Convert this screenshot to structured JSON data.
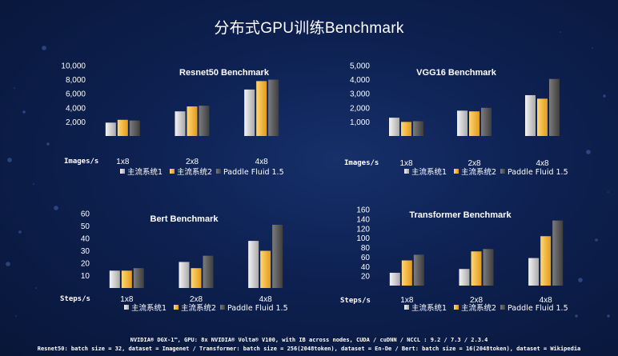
{
  "title": "分布式GPU训练Benchmark",
  "colors": {
    "series": [
      [
        "#f4f4f4",
        "#a9a9a9"
      ],
      [
        "#ffd773",
        "#e29a1a"
      ],
      [
        "#7c7c7c",
        "#3e3e3e"
      ]
    ]
  },
  "chart_data": [
    {
      "type": "bar",
      "title": "Resnet50 Benchmark",
      "xlabel": "Images/s",
      "categories": [
        "1x8",
        "2x8",
        "4x8"
      ],
      "y_ticks": [
        "2,000",
        "4,000",
        "6,000",
        "8,000",
        "10,000"
      ],
      "ylim": [
        0,
        10000
      ],
      "series": [
        {
          "name": "主流系统1",
          "values": [
            1900,
            3500,
            6600
          ]
        },
        {
          "name": "主流系统2",
          "values": [
            2300,
            4200,
            7800
          ]
        },
        {
          "name": "Paddle Fluid 1.5",
          "values": [
            2200,
            4300,
            8000
          ]
        }
      ]
    },
    {
      "type": "bar",
      "title": "VGG16 Benchmark",
      "xlabel": "Images/s",
      "categories": [
        "1x8",
        "2x8",
        "4x8"
      ],
      "y_ticks": [
        "1,000",
        "2,000",
        "3,000",
        "4,000",
        "5,000"
      ],
      "ylim": [
        0,
        5000
      ],
      "series": [
        {
          "name": "主流系统1",
          "values": [
            1300,
            1800,
            2900
          ]
        },
        {
          "name": "主流系统2",
          "values": [
            1000,
            1750,
            2650
          ]
        },
        {
          "name": "Paddle Fluid 1.5",
          "values": [
            1050,
            2000,
            4050
          ]
        }
      ]
    },
    {
      "type": "bar",
      "title": "Bert Benchmark",
      "xlabel": "Steps/s",
      "categories": [
        "1x8",
        "2x8",
        "4x8"
      ],
      "y_ticks": [
        "10",
        "20",
        "30",
        "40",
        "50",
        "60"
      ],
      "ylim": [
        0,
        60
      ],
      "series": [
        {
          "name": "主流系统1",
          "values": [
            14,
            21,
            38
          ]
        },
        {
          "name": "主流系统2",
          "values": [
            14,
            16,
            30
          ]
        },
        {
          "name": "Paddle Fluid 1.5",
          "values": [
            16,
            26,
            51
          ]
        }
      ]
    },
    {
      "type": "bar",
      "title": "Transformer Benchmark",
      "xlabel": "Steps/s",
      "categories": [
        "1x8",
        "2x8",
        "4x8"
      ],
      "y_ticks": [
        "20",
        "40",
        "60",
        "80",
        "100",
        "120",
        "140",
        "160"
      ],
      "ylim": [
        0,
        160
      ],
      "series": [
        {
          "name": "主流系统1",
          "values": [
            27,
            35,
            58
          ]
        },
        {
          "name": "主流系统2",
          "values": [
            53,
            72,
            104
          ]
        },
        {
          "name": "Paddle Fluid 1.5",
          "values": [
            65,
            77,
            137
          ]
        }
      ]
    }
  ],
  "footer": {
    "line1": "NVIDIA® DGX-1™, GPU: 8x NVIDIA® Volta® V100, with IB across nodes, CUDA / cuDNN / NCCL : 9.2 / 7.3 / 2.3.4",
    "line2": "Resnet50: batch size = 32, dataset = Imagenet / Transformer: batch size = 256(2048token), dataset = En-De / Bert: batch size = 16(2048token), dataset = Wikipedia"
  }
}
